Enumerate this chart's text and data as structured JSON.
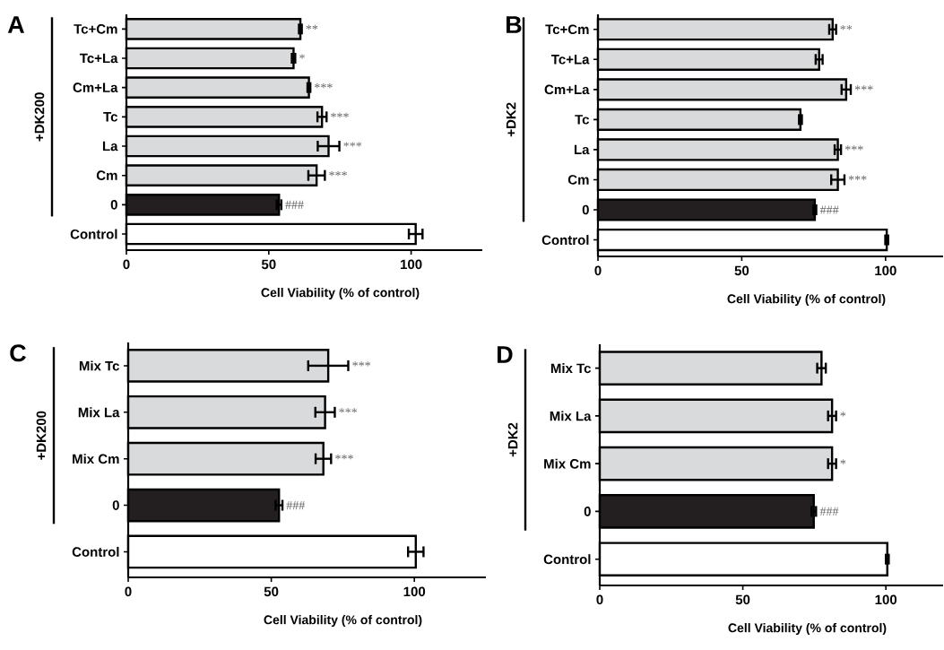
{
  "chart_data": [
    {
      "type": "bar",
      "orientation": "horizontal",
      "title": "A",
      "xlabel": "Cell Viability (% of control)",
      "categories": [
        "Tc+Cm",
        "Tc+La",
        "Cm+La",
        "Tc",
        "La",
        "Cm",
        "0",
        "Control"
      ],
      "values": [
        61.1,
        58.7,
        64.1,
        68.7,
        71.0,
        66.8,
        53.6,
        101.6
      ],
      "errors": [
        0.5,
        0.6,
        0.5,
        1.6,
        3.8,
        2.9,
        0.8,
        2.4
      ],
      "colors": [
        "#d9dadb",
        "#d9dadb",
        "#d9dadb",
        "#d9dadb",
        "#d9dadb",
        "#d9dadb",
        "#231f20",
        "#ffffff"
      ],
      "xlim": [
        0,
        125
      ],
      "xticks": [
        0,
        50,
        100
      ],
      "annotations": [
        "+DK200",
        {
          "text": "**",
          "x": 61.6,
          "y": "Tc+Cm"
        },
        {
          "text": "*",
          "x": 59.3,
          "y": "Tc+La"
        },
        {
          "text": "***",
          "x": 64.6,
          "y": "Cm+La"
        },
        {
          "text": "***",
          "x": 70.3,
          "y": "Tc"
        },
        {
          "text": "***",
          "x": 74.8,
          "y": "La"
        },
        {
          "text": "***",
          "x": 69.7,
          "y": "Cm"
        },
        {
          "text": "###",
          "x": 54.4,
          "y": "0"
        }
      ]
    },
    {
      "type": "bar",
      "orientation": "horizontal",
      "title": "B",
      "xlabel": "Cell Viability (% of control)",
      "categories": [
        "Tc+Cm",
        "Tc+La",
        "Cm+La",
        "Tc",
        "La",
        "Cm",
        "0",
        "Control"
      ],
      "values": [
        81.6,
        76.9,
        86.3,
        70.4,
        83.4,
        83.4,
        75.4,
        100.4
      ],
      "errors": [
        1.2,
        1.2,
        1.6,
        0.5,
        1.1,
        2.3,
        0.5,
        0.5
      ],
      "colors": [
        "#d9dadb",
        "#d9dadb",
        "#d9dadb",
        "#d9dadb",
        "#d9dadb",
        "#d9dadb",
        "#231f20",
        "#ffffff"
      ],
      "xlim": [
        0,
        120
      ],
      "xticks": [
        0,
        50,
        100
      ],
      "annotations": [
        "+DK2",
        {
          "text": "**",
          "x": 82.8,
          "y": "Tc+Cm"
        },
        {
          "text": "***",
          "x": 87.9,
          "y": "Cm+La"
        },
        {
          "text": "***",
          "x": 84.5,
          "y": "La"
        },
        {
          "text": "***",
          "x": 85.7,
          "y": "Cm"
        },
        {
          "text": "###",
          "x": 75.9,
          "y": "0"
        }
      ]
    },
    {
      "type": "bar",
      "orientation": "horizontal",
      "title": "C",
      "xlabel": "Cell Viability (% of control)",
      "categories": [
        "Mix Tc",
        "Mix La",
        "Mix Cm",
        "0",
        "Control"
      ],
      "values": [
        69.9,
        68.8,
        68.2,
        52.7,
        100.5
      ],
      "errors": [
        7.0,
        3.4,
        2.7,
        1.2,
        2.7
      ],
      "colors": [
        "#d9dadb",
        "#d9dadb",
        "#d9dadb",
        "#231f20",
        "#ffffff"
      ],
      "xlim": [
        0,
        125
      ],
      "xticks": [
        0,
        50,
        100
      ],
      "annotations": [
        "+DK200",
        {
          "text": "***",
          "x": 76.9,
          "y": "Mix Tc"
        },
        {
          "text": "***",
          "x": 72.2,
          "y": "Mix La"
        },
        {
          "text": "***",
          "x": 70.9,
          "y": "Mix Cm"
        },
        {
          "text": "###",
          "x": 53.9,
          "y": "0"
        }
      ]
    },
    {
      "type": "bar",
      "orientation": "horizontal",
      "title": "D",
      "xlabel": "Cell Viability (% of control)",
      "categories": [
        "Mix Tc",
        "Mix La",
        "Mix Cm",
        "0",
        "Control"
      ],
      "values": [
        77.5,
        81.2,
        81.2,
        74.8,
        100.5
      ],
      "errors": [
        1.5,
        1.4,
        1.4,
        0.8,
        0.5
      ],
      "colors": [
        "#d9dadb",
        "#d9dadb",
        "#d9dadb",
        "#231f20",
        "#ffffff"
      ],
      "xlim": [
        0,
        120
      ],
      "xticks": [
        0,
        50,
        100
      ],
      "annotations": [
        "+DK2",
        {
          "text": "*",
          "x": 82.6,
          "y": "Mix La"
        },
        {
          "text": "*",
          "x": 82.6,
          "y": "Mix Cm"
        },
        {
          "text": "###",
          "x": 75.6,
          "y": "0"
        }
      ]
    }
  ]
}
